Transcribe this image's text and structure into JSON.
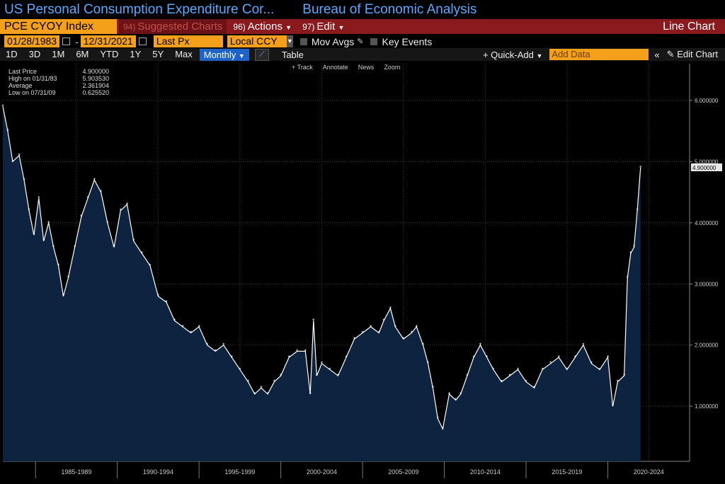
{
  "header": {
    "title": "US Personal Consumption Expenditure Cor...",
    "source": "Bureau of Economic Analysis"
  },
  "toolbar": {
    "ticker": "PCE CYOY Index",
    "suggested_num": "94)",
    "suggested": "Suggested Charts",
    "actions_num": "96)",
    "actions": "Actions",
    "edit_num": "97)",
    "edit": "Edit",
    "chart_type": "Line Chart"
  },
  "params": {
    "start_date": "01/28/1983",
    "end_date": "12/31/2021",
    "field": "Last Px",
    "currency": "Local CCY",
    "mov_avgs": "Mov Avgs",
    "key_events": "Key Events"
  },
  "ranges": [
    "1D",
    "3D",
    "1M",
    "6M",
    "YTD",
    "1Y",
    "5Y",
    "Max"
  ],
  "periodicity": "Monthly",
  "table_label": "Table",
  "quick_add": "+ Quick-Add",
  "add_data_placeholder": "Add Data",
  "edit_chart": "Edit Chart",
  "tools": [
    "+ Track",
    "Annotate",
    "News",
    "Zoom"
  ],
  "legend": [
    {
      "label": "Last Price",
      "value": "4.900000"
    },
    {
      "label": "High on 01/31/83",
      "value": "5.903530"
    },
    {
      "label": "Average",
      "value": "2.361904"
    },
    {
      "label": "Low on 07/31/09",
      "value": "0.625520"
    }
  ],
  "colors": {
    "line": "#ffffff",
    "fill": "#0d2340",
    "accent": "#f5a01a",
    "title": "#5aa9ff"
  },
  "chart_data": {
    "type": "area",
    "title": "",
    "xlabel": "",
    "ylabel": "",
    "ylim": [
      0.1,
      6.6
    ],
    "xlim": [
      1983.0,
      2025.0
    ],
    "grid": true,
    "last_value_label": "4.900000",
    "yticks": [
      1.0,
      2.0,
      3.0,
      4.0,
      5.0,
      6.0
    ],
    "ytick_labels": [
      "1.000000",
      "2.000000",
      "3.000000",
      "4.000000",
      "5.000000",
      "6.000000"
    ],
    "xtick_labels": [
      "1985-1989",
      "1990-1994",
      "1995-1999",
      "2000-2004",
      "2005-2009",
      "2010-2014",
      "2015-2019",
      "2020-2024"
    ],
    "xtick_centers": [
      1987.5,
      1992.5,
      1997.5,
      2002.5,
      2007.5,
      2012.5,
      2017.5,
      2022.5
    ],
    "xtick_boundaries": [
      1985,
      1990,
      1995,
      2000,
      2005,
      2010,
      2015,
      2020
    ],
    "series": [
      {
        "x": [
          1983.0,
          1983.3,
          1983.6,
          1984.0,
          1984.3,
          1984.6,
          1984.9,
          1985.2,
          1985.5,
          1985.8,
          1986.1,
          1986.4,
          1986.7,
          1987.0,
          1987.4,
          1987.8,
          1988.2,
          1988.6,
          1989.0,
          1989.4,
          1989.8,
          1990.2,
          1990.6,
          1991.0,
          1991.5,
          1992.0,
          1992.5,
          1993.0,
          1993.5,
          1994.0,
          1994.5,
          1995.0,
          1995.5,
          1996.0,
          1996.5,
          1997.0,
          1997.5,
          1998.0,
          1998.4,
          1998.8,
          1999.2,
          1999.6,
          2000.0,
          2000.5,
          2001.0,
          2001.5,
          2001.8,
          2002.0,
          2002.2,
          2002.5,
          2003.0,
          2003.5,
          2004.0,
          2004.5,
          2005.0,
          2005.5,
          2006.0,
          2006.3,
          2006.7,
          2007.0,
          2007.5,
          2008.0,
          2008.3,
          2008.7,
          2009.0,
          2009.3,
          2009.6,
          2009.9,
          2010.3,
          2010.7,
          2011.0,
          2011.4,
          2011.8,
          2012.2,
          2012.6,
          2013.0,
          2013.5,
          2014.0,
          2014.5,
          2015.0,
          2015.5,
          2016.0,
          2016.5,
          2017.0,
          2017.5,
          2018.0,
          2018.5,
          2019.0,
          2019.5,
          2020.0,
          2020.3,
          2020.6,
          2021.0,
          2021.2,
          2021.4,
          2021.6,
          2021.8,
          2022.0
        ],
        "y": [
          5.9,
          5.5,
          5.0,
          5.1,
          4.7,
          4.2,
          3.8,
          4.4,
          3.7,
          4.0,
          3.6,
          3.3,
          2.8,
          3.1,
          3.6,
          4.1,
          4.4,
          4.7,
          4.5,
          4.0,
          3.6,
          4.2,
          4.3,
          3.7,
          3.5,
          3.3,
          2.8,
          2.7,
          2.4,
          2.3,
          2.2,
          2.3,
          2.0,
          1.9,
          2.0,
          1.8,
          1.6,
          1.4,
          1.2,
          1.3,
          1.2,
          1.4,
          1.5,
          1.8,
          1.9,
          1.9,
          1.2,
          2.4,
          1.5,
          1.7,
          1.6,
          1.5,
          1.8,
          2.1,
          2.2,
          2.3,
          2.2,
          2.4,
          2.6,
          2.3,
          2.1,
          2.2,
          2.3,
          2.0,
          1.7,
          1.3,
          0.8,
          0.63,
          1.2,
          1.1,
          1.2,
          1.5,
          1.8,
          2.0,
          1.8,
          1.6,
          1.4,
          1.5,
          1.6,
          1.4,
          1.3,
          1.6,
          1.7,
          1.8,
          1.6,
          1.8,
          2.0,
          1.7,
          1.6,
          1.8,
          1.0,
          1.4,
          1.5,
          3.1,
          3.5,
          3.6,
          4.2,
          4.9
        ]
      }
    ]
  }
}
